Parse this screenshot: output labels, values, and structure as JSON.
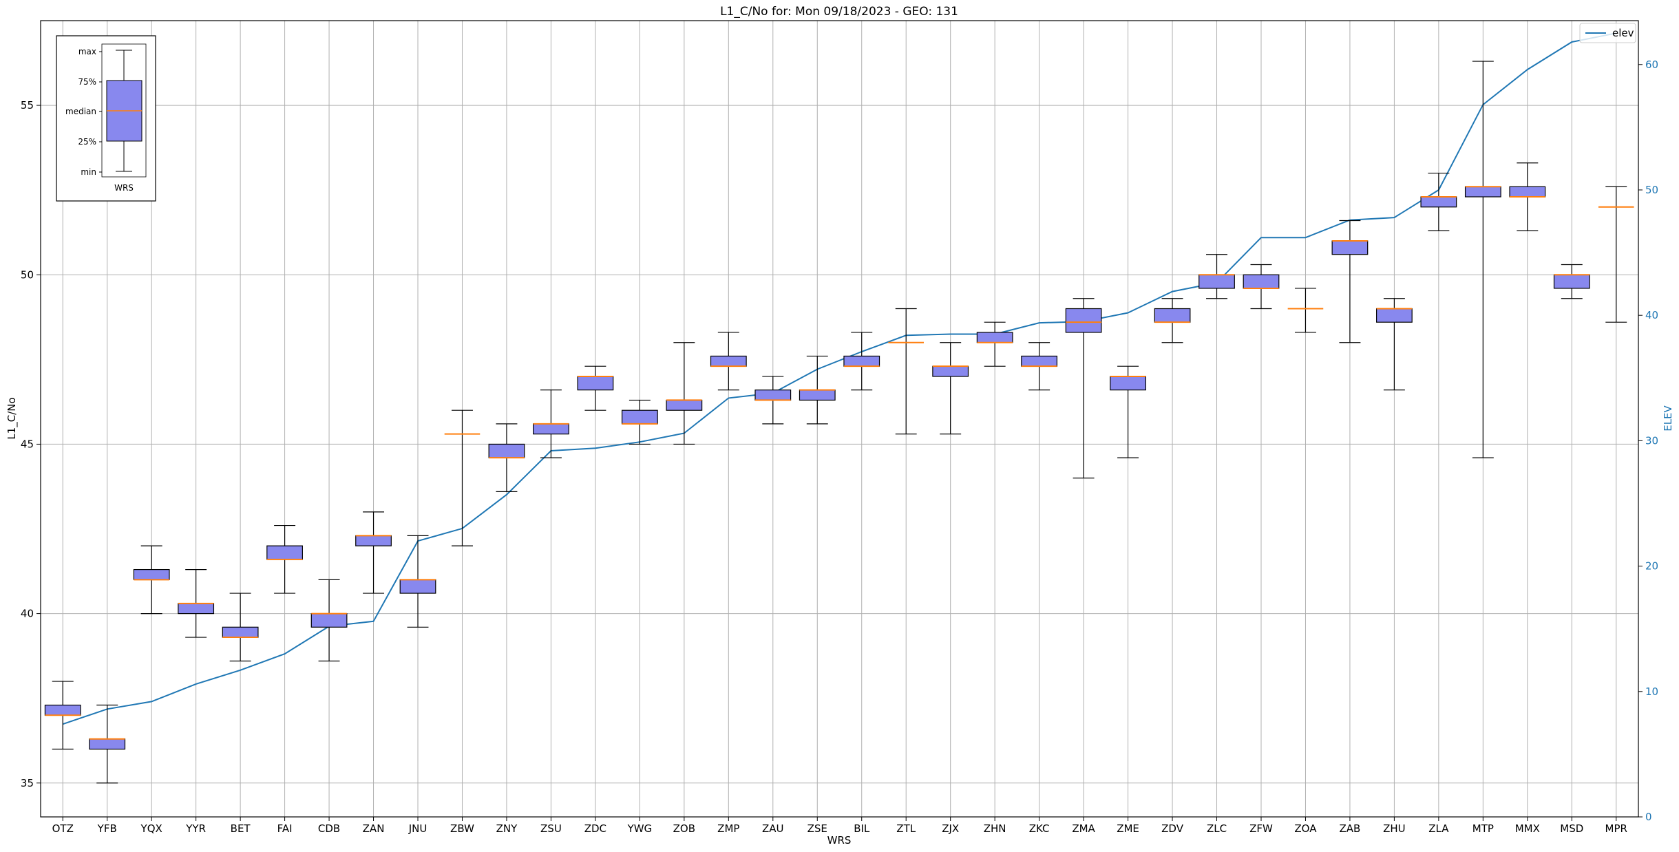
{
  "chart_data": {
    "type": "box",
    "title": "L1_C/No for: Mon 09/18/2023 - GEO: 131",
    "xlabel": "WRS",
    "ylabel": "L1_C/No",
    "y2label": "ELEV",
    "ylim": [
      34.0,
      57.5
    ],
    "y2lim": [
      0,
      63.5
    ],
    "yticks": [
      "35",
      "40",
      "45",
      "50",
      "55"
    ],
    "y2ticks": [
      "0",
      "10",
      "20",
      "30",
      "40",
      "50",
      "60"
    ],
    "grid": true,
    "legend": {
      "label": "elev",
      "placement": "top-right"
    },
    "colors": {
      "box_fill": "#8888ee",
      "median": "#ff7f0e",
      "elev_line": "#1f77b4",
      "grid": "#b0b0b0"
    },
    "categories": [
      "OTZ",
      "YFB",
      "YQX",
      "YYR",
      "BET",
      "FAI",
      "CDB",
      "ZAN",
      "JNU",
      "ZBW",
      "ZNY",
      "ZSU",
      "ZDC",
      "YWG",
      "ZOB",
      "ZMP",
      "ZAU",
      "ZSE",
      "BIL",
      "ZTL",
      "ZJX",
      "ZHN",
      "ZKC",
      "ZMA",
      "ZME",
      "ZDV",
      "ZLC",
      "ZFW",
      "ZOA",
      "ZAB",
      "ZHU",
      "ZLA",
      "MTP",
      "MMX",
      "MSD",
      "MPR"
    ],
    "boxes": [
      {
        "min": 36.0,
        "q1": 37.0,
        "median": 37.0,
        "q3": 37.3,
        "max": 38.0
      },
      {
        "min": 35.0,
        "q1": 36.0,
        "median": 36.3,
        "q3": 36.3,
        "max": 37.3
      },
      {
        "min": 40.0,
        "q1": 41.0,
        "median": 41.0,
        "q3": 41.3,
        "max": 42.0
      },
      {
        "min": 39.3,
        "q1": 40.0,
        "median": 40.3,
        "q3": 40.3,
        "max": 41.3
      },
      {
        "min": 38.6,
        "q1": 39.3,
        "median": 39.3,
        "q3": 39.6,
        "max": 40.6
      },
      {
        "min": 40.6,
        "q1": 41.6,
        "median": 41.6,
        "q3": 42.0,
        "max": 42.6
      },
      {
        "min": 38.6,
        "q1": 39.6,
        "median": 40.0,
        "q3": 40.0,
        "max": 41.0
      },
      {
        "min": 40.6,
        "q1": 42.0,
        "median": 42.3,
        "q3": 42.3,
        "max": 43.0
      },
      {
        "min": 39.6,
        "q1": 40.6,
        "median": 41.0,
        "q3": 41.0,
        "max": 42.3
      },
      {
        "min": 42.0,
        "q1": 45.3,
        "median": 45.3,
        "q3": 45.3,
        "max": 46.0
      },
      {
        "min": 43.6,
        "q1": 44.6,
        "median": 44.6,
        "q3": 45.0,
        "max": 45.6
      },
      {
        "min": 44.6,
        "q1": 45.3,
        "median": 45.6,
        "q3": 45.6,
        "max": 46.6
      },
      {
        "min": 46.0,
        "q1": 46.6,
        "median": 47.0,
        "q3": 47.0,
        "max": 47.3
      },
      {
        "min": 45.0,
        "q1": 45.6,
        "median": 45.6,
        "q3": 46.0,
        "max": 46.3
      },
      {
        "min": 45.0,
        "q1": 46.0,
        "median": 46.3,
        "q3": 46.3,
        "max": 48.0
      },
      {
        "min": 46.6,
        "q1": 47.3,
        "median": 47.3,
        "q3": 47.6,
        "max": 48.3
      },
      {
        "min": 45.6,
        "q1": 46.3,
        "median": 46.3,
        "q3": 46.6,
        "max": 47.0
      },
      {
        "min": 45.6,
        "q1": 46.3,
        "median": 46.6,
        "q3": 46.6,
        "max": 47.6
      },
      {
        "min": 46.6,
        "q1": 47.3,
        "median": 47.3,
        "q3": 47.6,
        "max": 48.3
      },
      {
        "min": 45.3,
        "q1": 48.0,
        "median": 48.0,
        "q3": 48.0,
        "max": 49.0
      },
      {
        "min": 45.3,
        "q1": 47.0,
        "median": 47.3,
        "q3": 47.3,
        "max": 48.0
      },
      {
        "min": 47.3,
        "q1": 48.0,
        "median": 48.0,
        "q3": 48.3,
        "max": 48.6
      },
      {
        "min": 46.6,
        "q1": 47.3,
        "median": 47.3,
        "q3": 47.6,
        "max": 48.0
      },
      {
        "min": 44.0,
        "q1": 48.3,
        "median": 48.6,
        "q3": 49.0,
        "max": 49.3
      },
      {
        "min": 44.6,
        "q1": 46.6,
        "median": 47.0,
        "q3": 47.0,
        "max": 47.3
      },
      {
        "min": 48.0,
        "q1": 48.6,
        "median": 48.6,
        "q3": 49.0,
        "max": 49.3
      },
      {
        "min": 49.3,
        "q1": 49.6,
        "median": 50.0,
        "q3": 50.0,
        "max": 50.6
      },
      {
        "min": 49.0,
        "q1": 49.6,
        "median": 49.6,
        "q3": 50.0,
        "max": 50.3
      },
      {
        "min": 48.3,
        "q1": 49.0,
        "median": 49.0,
        "q3": 49.0,
        "max": 49.6
      },
      {
        "min": 48.0,
        "q1": 50.6,
        "median": 51.0,
        "q3": 51.0,
        "max": 51.6
      },
      {
        "min": 46.6,
        "q1": 48.6,
        "median": 49.0,
        "q3": 49.0,
        "max": 49.3
      },
      {
        "min": 51.3,
        "q1": 52.0,
        "median": 52.3,
        "q3": 52.3,
        "max": 53.0
      },
      {
        "min": 44.6,
        "q1": 52.3,
        "median": 52.6,
        "q3": 52.6,
        "max": 56.3
      },
      {
        "min": 51.3,
        "q1": 52.3,
        "median": 52.3,
        "q3": 52.6,
        "max": 53.3
      },
      {
        "min": 49.3,
        "q1": 49.6,
        "median": 50.0,
        "q3": 50.0,
        "max": 50.3
      },
      {
        "min": 48.6,
        "q1": 52.0,
        "median": 52.0,
        "q3": 52.0,
        "max": 52.6
      }
    ],
    "elev": [
      7.4,
      8.6,
      9.2,
      10.6,
      11.7,
      13.0,
      15.2,
      15.6,
      22.0,
      23.0,
      25.7,
      29.2,
      29.4,
      29.9,
      30.6,
      33.4,
      33.8,
      35.7,
      37.1,
      38.4,
      38.5,
      38.5,
      39.4,
      39.5,
      40.2,
      41.9,
      42.6,
      46.2,
      46.2,
      47.6,
      47.8,
      50.0,
      56.8,
      59.6,
      61.8,
      62.5
    ]
  },
  "inset": {
    "labels": [
      "max",
      "75%",
      "median",
      "25%",
      "min"
    ],
    "xlabel": "WRS"
  }
}
